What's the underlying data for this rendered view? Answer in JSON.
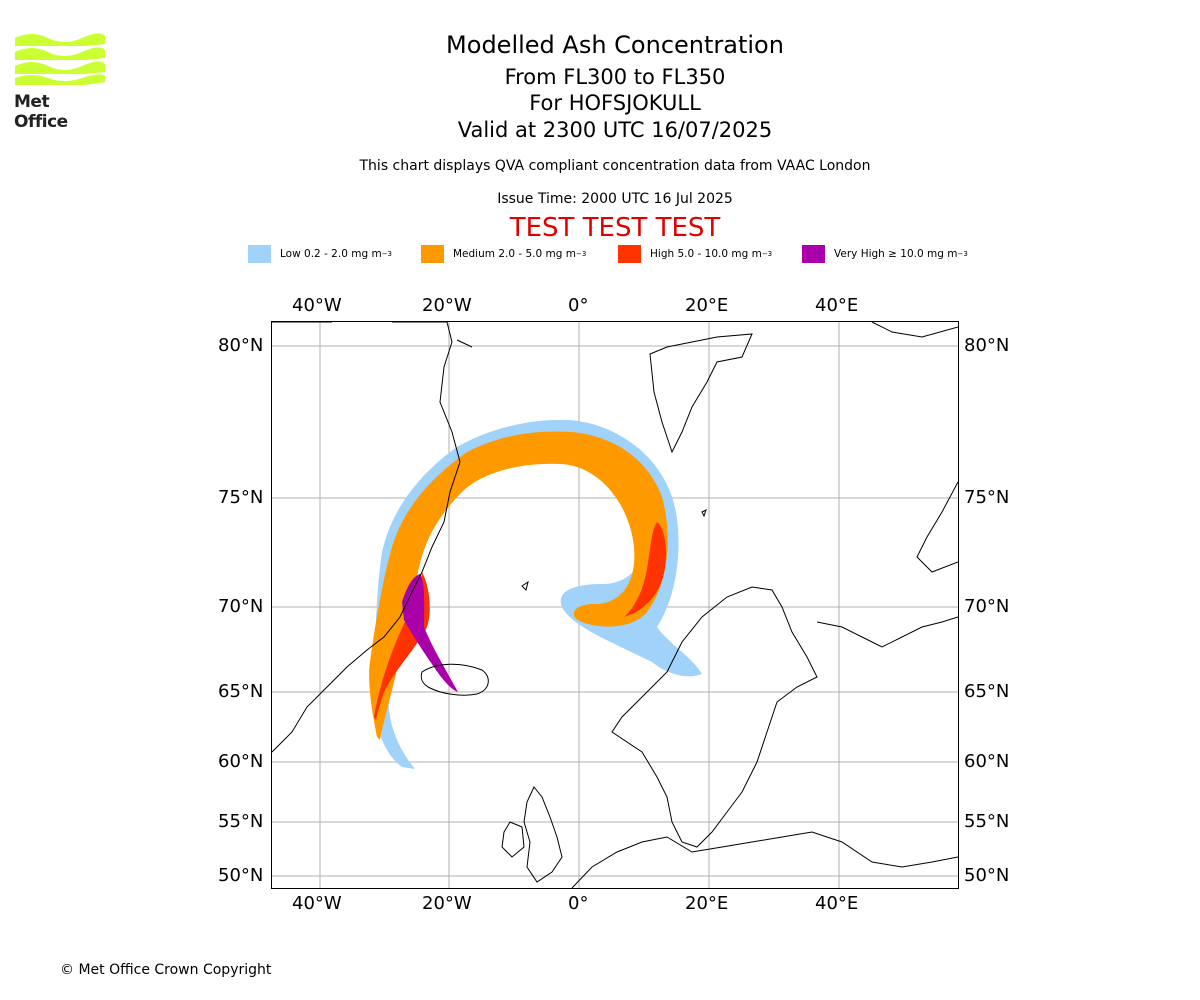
{
  "logo": {
    "name": "Met Office",
    "icon": "met-office-wave-logo",
    "color": "#ccff33"
  },
  "title": {
    "line1": "Modelled Ash Concentration",
    "line2": "From FL300 to FL350",
    "line3": "For HOFSJOKULL",
    "line4": "Valid at 2300 UTC 16/07/2025"
  },
  "subtitle": "This chart displays QVA compliant concentration data from VAAC London",
  "issue_time": "Issue Time: 2000 UTC 16 Jul 2025",
  "test_banner": "TEST TEST TEST",
  "legend": [
    {
      "label": "Low 0.2 - 2.0 mg m",
      "sup": "−3",
      "color": "#a0d2fa"
    },
    {
      "label": "Medium 2.0 - 5.0 mg m",
      "sup": "−3",
      "color": "#ff9900"
    },
    {
      "label": "High 5.0 - 10.0 mg m",
      "sup": "−3",
      "color": "#ff3300"
    },
    {
      "label": "Very High ≥ 10.0 mg m",
      "sup": "−3",
      "color": "#aa00aa"
    }
  ],
  "axes": {
    "lon_ticks": [
      "40°W",
      "20°W",
      "0°",
      "20°E",
      "40°E"
    ],
    "lat_ticks": [
      "80°N",
      "75°N",
      "70°N",
      "65°N",
      "60°N",
      "55°N",
      "50°N"
    ]
  },
  "copyright": "© Met Office Crown Copyright"
}
